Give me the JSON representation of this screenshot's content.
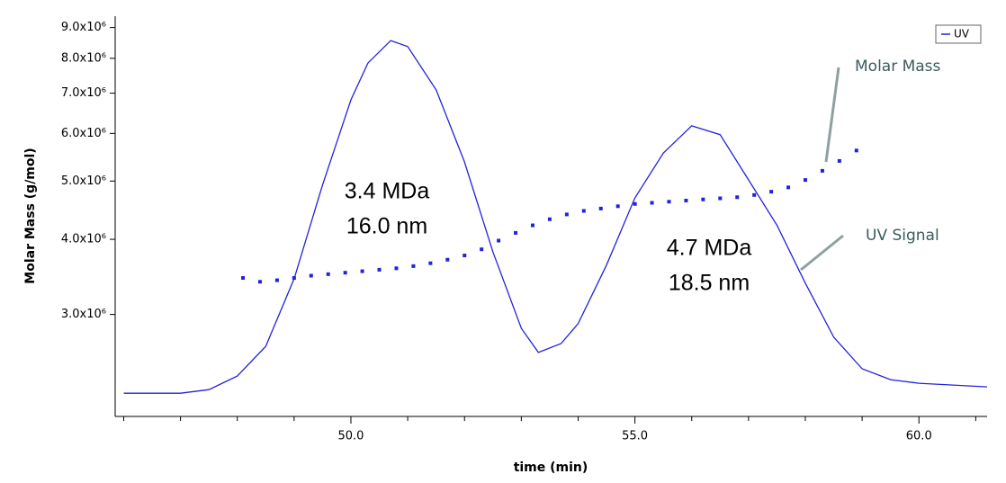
{
  "chart_data": {
    "type": "line",
    "xlabel": "time (min)",
    "ylabel": "Molar Mass (g/mol)",
    "xlim": [
      45.85,
      61.2
    ],
    "xticks": [
      {
        "value": 50,
        "label": "50.0"
      },
      {
        "value": 55,
        "label": "55.0"
      },
      {
        "value": 60,
        "label": "60.0"
      }
    ],
    "xminor_ticks": [
      46,
      47,
      48,
      49,
      51,
      52,
      53,
      54,
      56,
      57,
      58,
      59,
      61
    ],
    "ylim": [
      2030000,
      9400000
    ],
    "y_scale": "log",
    "yticks": [
      {
        "value": 3000000,
        "label": "3.0x10⁶"
      },
      {
        "value": 4000000,
        "label": "4.0x10⁶"
      },
      {
        "value": 5000000,
        "label": "5.0x10⁶"
      },
      {
        "value": 6000000,
        "label": "6.0x10⁶"
      },
      {
        "value": 7000000,
        "label": "7.0x10⁶"
      },
      {
        "value": 8000000,
        "label": "8.0x10⁶"
      },
      {
        "value": 9000000,
        "label": "9.0x10⁶"
      }
    ],
    "y2lim": [
      0,
      1
    ],
    "legend": "upper right",
    "series": [
      {
        "name": "UV",
        "color": "#2222dd",
        "axis": "y2",
        "style": "line",
        "x": [
          46.0,
          47.0,
          47.5,
          48.0,
          48.5,
          49.0,
          49.5,
          50.0,
          50.3,
          50.7,
          51.0,
          51.5,
          52.0,
          52.5,
          53.0,
          53.3,
          53.7,
          54.0,
          54.5,
          55.0,
          55.5,
          56.0,
          56.5,
          57.0,
          57.5,
          58.0,
          58.5,
          59.0,
          59.5,
          60.0,
          61.2
        ],
        "values": [
          0.058,
          0.058,
          0.067,
          0.101,
          0.175,
          0.344,
          0.578,
          0.791,
          0.883,
          0.939,
          0.924,
          0.816,
          0.636,
          0.411,
          0.22,
          0.16,
          0.182,
          0.232,
          0.378,
          0.546,
          0.658,
          0.726,
          0.704,
          0.591,
          0.478,
          0.333,
          0.198,
          0.119,
          0.092,
          0.083,
          0.074
        ]
      },
      {
        "color": "#2222dd",
        "style": "dots",
        "x": [
          48.1,
          48.4,
          48.7,
          49.0,
          49.3,
          49.6,
          49.9,
          50.2,
          50.5,
          50.8,
          51.1,
          51.4,
          51.7,
          52.0,
          52.3,
          52.6,
          52.9,
          53.2,
          53.5,
          53.8,
          54.1,
          54.4,
          54.7,
          55.0,
          55.3,
          55.6,
          55.9,
          56.2,
          56.5,
          56.8,
          57.1,
          57.4,
          57.7,
          58.0,
          58.3,
          58.6,
          58.9
        ],
        "values": [
          3450000,
          3400000,
          3420000,
          3450000,
          3480000,
          3500000,
          3520000,
          3540000,
          3560000,
          3580000,
          3610000,
          3650000,
          3700000,
          3760000,
          3850000,
          3980000,
          4100000,
          4220000,
          4320000,
          4400000,
          4460000,
          4500000,
          4540000,
          4580000,
          4600000,
          4620000,
          4640000,
          4660000,
          4680000,
          4700000,
          4740000,
          4800000,
          4880000,
          5020000,
          5200000,
          5400000,
          5620000
        ]
      }
    ],
    "annotations": [
      "3.4 MDa",
      "16.0 nm",
      "4.7 MDa",
      "18.5 nm",
      "Molar Mass",
      "UV Signal"
    ]
  }
}
